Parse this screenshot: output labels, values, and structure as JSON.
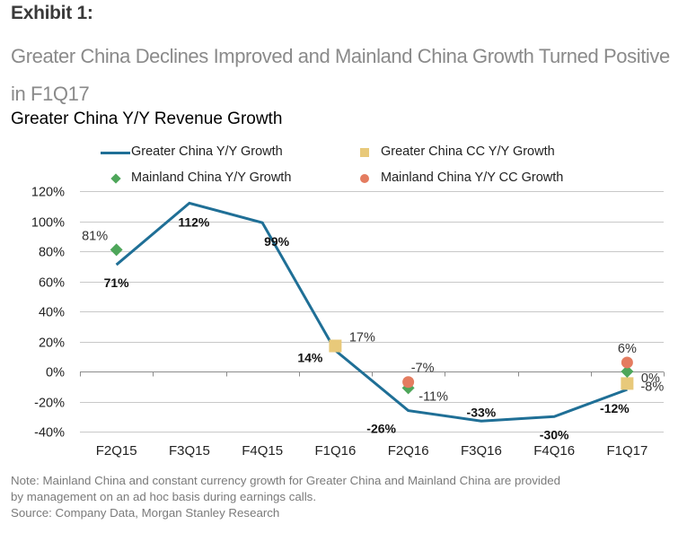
{
  "header": {
    "exhibit": "Exhibit 1:",
    "subtitle": "Greater China Declines Improved and Mainland China Growth Turned Positive in F1Q17"
  },
  "chart_data": {
    "type": "line",
    "title": "Greater China Y/Y Revenue Growth",
    "xlabel": "",
    "ylabel": "",
    "categories": [
      "F2Q15",
      "F3Q15",
      "F4Q15",
      "F1Q16",
      "F2Q16",
      "F3Q16",
      "F4Q16",
      "F1Q17"
    ],
    "ylim": [
      -40,
      120
    ],
    "yticks": [
      120,
      100,
      80,
      60,
      40,
      20,
      0,
      -20,
      -40
    ],
    "ytick_labels": [
      "120%",
      "100%",
      "80%",
      "60%",
      "40%",
      "20%",
      "0%",
      "-20%",
      "-40%"
    ],
    "grid": true,
    "legend_position": "top",
    "series": [
      {
        "name": "Greater China Y/Y Growth",
        "kind": "line",
        "color": "#1f6f96",
        "values": [
          71,
          112,
          99,
          14,
          -26,
          -33,
          -30,
          -12
        ],
        "labels": [
          "71%",
          "112%",
          "99%",
          "14%",
          "-26%",
          "-33%",
          "-30%",
          "-12%"
        ]
      },
      {
        "name": "Greater China CC Y/Y Growth",
        "kind": "square",
        "color": "#e8c97a",
        "values": [
          null,
          null,
          null,
          17,
          null,
          null,
          null,
          -8
        ],
        "labels": [
          null,
          null,
          null,
          "17%",
          null,
          null,
          null,
          "-8%"
        ]
      },
      {
        "name": "Mainland China Y/Y Growth",
        "kind": "diamond",
        "color": "#4ea65a",
        "values": [
          81,
          null,
          null,
          null,
          -11,
          null,
          null,
          0
        ],
        "labels": [
          "81%",
          null,
          null,
          null,
          "-11%",
          null,
          null,
          "0%"
        ]
      },
      {
        "name": "Mainland China Y/Y CC Growth",
        "kind": "circle",
        "color": "#e47c60",
        "values": [
          null,
          null,
          null,
          null,
          -7,
          null,
          null,
          6
        ],
        "labels": [
          null,
          null,
          null,
          null,
          "-7%",
          null,
          null,
          "6%"
        ]
      }
    ]
  },
  "footer": {
    "note_line1": "Note: Mainland China and constant currency growth for Greater China and Mainland China are provided",
    "note_line2": "by management on an ad hoc basis during earnings calls.",
    "source": "Source: Company Data, Morgan Stanley Research"
  }
}
